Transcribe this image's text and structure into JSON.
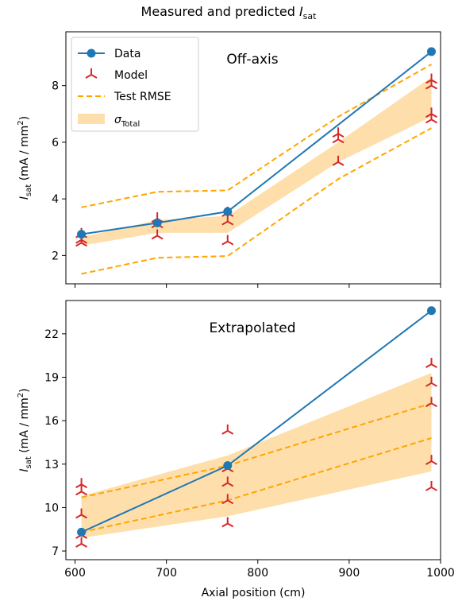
{
  "figure": {
    "title_prefix": "Measured and predicted ",
    "title_symbol": "I",
    "title_sub": "sat"
  },
  "colors": {
    "data": "#1f77b4",
    "model": "#d62728",
    "rmse": "#ffa500",
    "band": "#fedfac"
  },
  "legend": {
    "items": [
      {
        "key": "data",
        "label": "Data"
      },
      {
        "key": "model",
        "label": "Model"
      },
      {
        "key": "rmse",
        "label": "Test RMSE"
      },
      {
        "key": "band",
        "label_symbol": "σ",
        "label_sub": "Total"
      }
    ]
  },
  "chart_data": [
    {
      "type": "line",
      "annotation": "Off-axis",
      "xlabel": "",
      "ylabel": {
        "symbol": "I",
        "sub": "sat",
        "unit_open": " (mA / mm",
        "unit_sup": "2",
        "unit_close": ")"
      },
      "xlim": [
        590,
        1000
      ],
      "ylim": [
        1.0,
        9.9
      ],
      "yticks": [
        2,
        4,
        6,
        8
      ],
      "xticks": [
        600,
        700,
        800,
        900,
        1000
      ],
      "show_xtick_labels": false,
      "data": {
        "x": [
          607,
          690,
          767,
          990
        ],
        "y": [
          2.75,
          3.15,
          3.55,
          9.2
        ]
      },
      "model": [
        {
          "x": 607,
          "y": [
            2.45,
            2.55,
            2.75
          ]
        },
        {
          "x": 690,
          "y": [
            2.7,
            3.1,
            3.3
          ]
        },
        {
          "x": 767,
          "y": [
            2.5,
            3.2,
            3.5
          ]
        },
        {
          "x": 888,
          "y": [
            5.3,
            6.1,
            6.3
          ]
        },
        {
          "x": 990,
          "y": [
            6.8,
            7.0,
            8.0,
            8.2
          ]
        }
      ],
      "band": {
        "x": [
          607,
          690,
          767,
          888,
          990
        ],
        "lower": [
          2.35,
          2.8,
          2.8,
          5.3,
          6.9
        ],
        "upper": [
          2.65,
          3.25,
          3.4,
          6.0,
          8.3
        ]
      },
      "rmse_upper": {
        "x": [
          607,
          690,
          767,
          888,
          990
        ],
        "y": [
          3.7,
          4.25,
          4.3,
          6.9,
          8.75
        ]
      },
      "rmse_lower": {
        "x": [
          607,
          690,
          767,
          888,
          990
        ],
        "y": [
          1.35,
          1.92,
          1.98,
          4.7,
          6.5
        ]
      }
    },
    {
      "type": "line",
      "annotation": "Extrapolated",
      "xlabel": "Axial position (cm)",
      "ylabel": {
        "symbol": "I",
        "sub": "sat",
        "unit_open": " (mA / mm",
        "unit_sup": "2",
        "unit_close": ")"
      },
      "xlim": [
        590,
        1000
      ],
      "ylim": [
        6.4,
        24.3
      ],
      "yticks": [
        7,
        10,
        13,
        16,
        19,
        22
      ],
      "xticks": [
        600,
        700,
        800,
        900,
        1000
      ],
      "show_xtick_labels": true,
      "data": {
        "x": [
          607,
          767,
          990
        ],
        "y": [
          8.3,
          12.9,
          23.6
        ]
      },
      "model": [
        {
          "x": 607,
          "y": [
            7.5,
            8.1,
            9.5,
            11.1,
            11.6
          ]
        },
        {
          "x": 767,
          "y": [
            8.9,
            10.5,
            11.7,
            12.7,
            15.3
          ]
        },
        {
          "x": 990,
          "y": [
            11.4,
            13.2,
            17.2,
            18.6,
            19.9
          ]
        }
      ],
      "band": {
        "x": [
          607,
          767,
          990
        ],
        "lower": [
          7.9,
          9.4,
          12.5
        ],
        "upper": [
          10.8,
          13.6,
          19.3
        ]
      },
      "rmse_upper": {
        "x": [
          607,
          767,
          990
        ],
        "y": [
          10.7,
          12.9,
          17.2
        ]
      },
      "rmse_lower": {
        "x": [
          607,
          767,
          990
        ],
        "y": [
          8.3,
          10.5,
          14.8
        ]
      }
    }
  ]
}
